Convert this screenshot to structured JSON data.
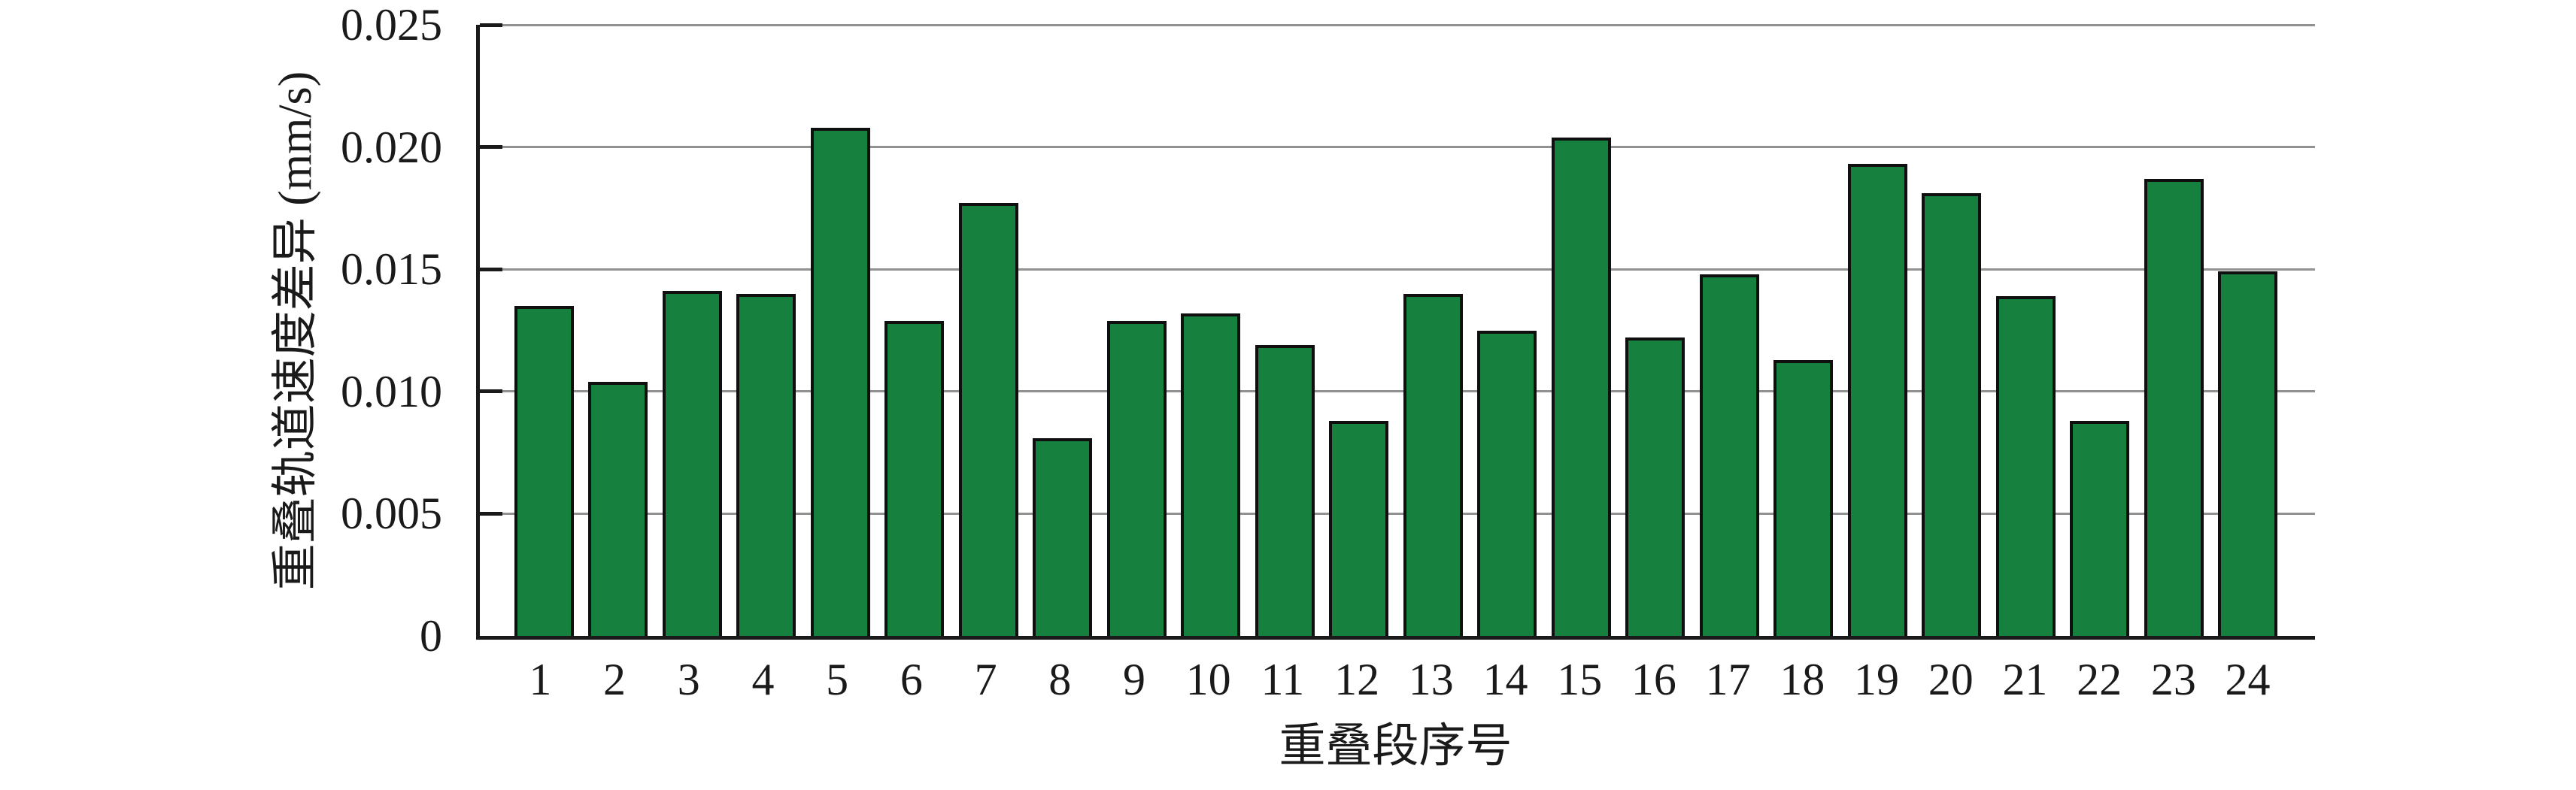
{
  "chart_data": {
    "type": "bar",
    "title": "",
    "xlabel": "重叠段序号",
    "ylabel": "重叠轨道速度差异 (mm/s)",
    "categories": [
      "1",
      "2",
      "3",
      "4",
      "5",
      "6",
      "7",
      "8",
      "9",
      "10",
      "11",
      "12",
      "13",
      "14",
      "15",
      "16",
      "17",
      "18",
      "19",
      "20",
      "21",
      "22",
      "23",
      "24"
    ],
    "values": [
      0.0135,
      0.0104,
      0.0141,
      0.014,
      0.0208,
      0.0129,
      0.0177,
      0.0081,
      0.0129,
      0.0132,
      0.0119,
      0.0088,
      0.014,
      0.0125,
      0.0204,
      0.0122,
      0.0148,
      0.0113,
      0.0193,
      0.0181,
      0.0139,
      0.0088,
      0.0187,
      0.0149
    ],
    "ylim": [
      0,
      0.025
    ],
    "ytick_values": [
      0,
      0.005,
      0.01,
      0.015,
      0.02,
      0.025
    ],
    "ytick_labels": [
      "0",
      "0.005",
      "0.010",
      "0.015",
      "0.020",
      "0.025"
    ],
    "grid": "horizontal",
    "legend_position": "none",
    "bar_fill_color": "#16803e",
    "bar_border_color": "#0f0f0f",
    "gridline_color": "#919191",
    "axis_color": "#1a1a1a"
  }
}
